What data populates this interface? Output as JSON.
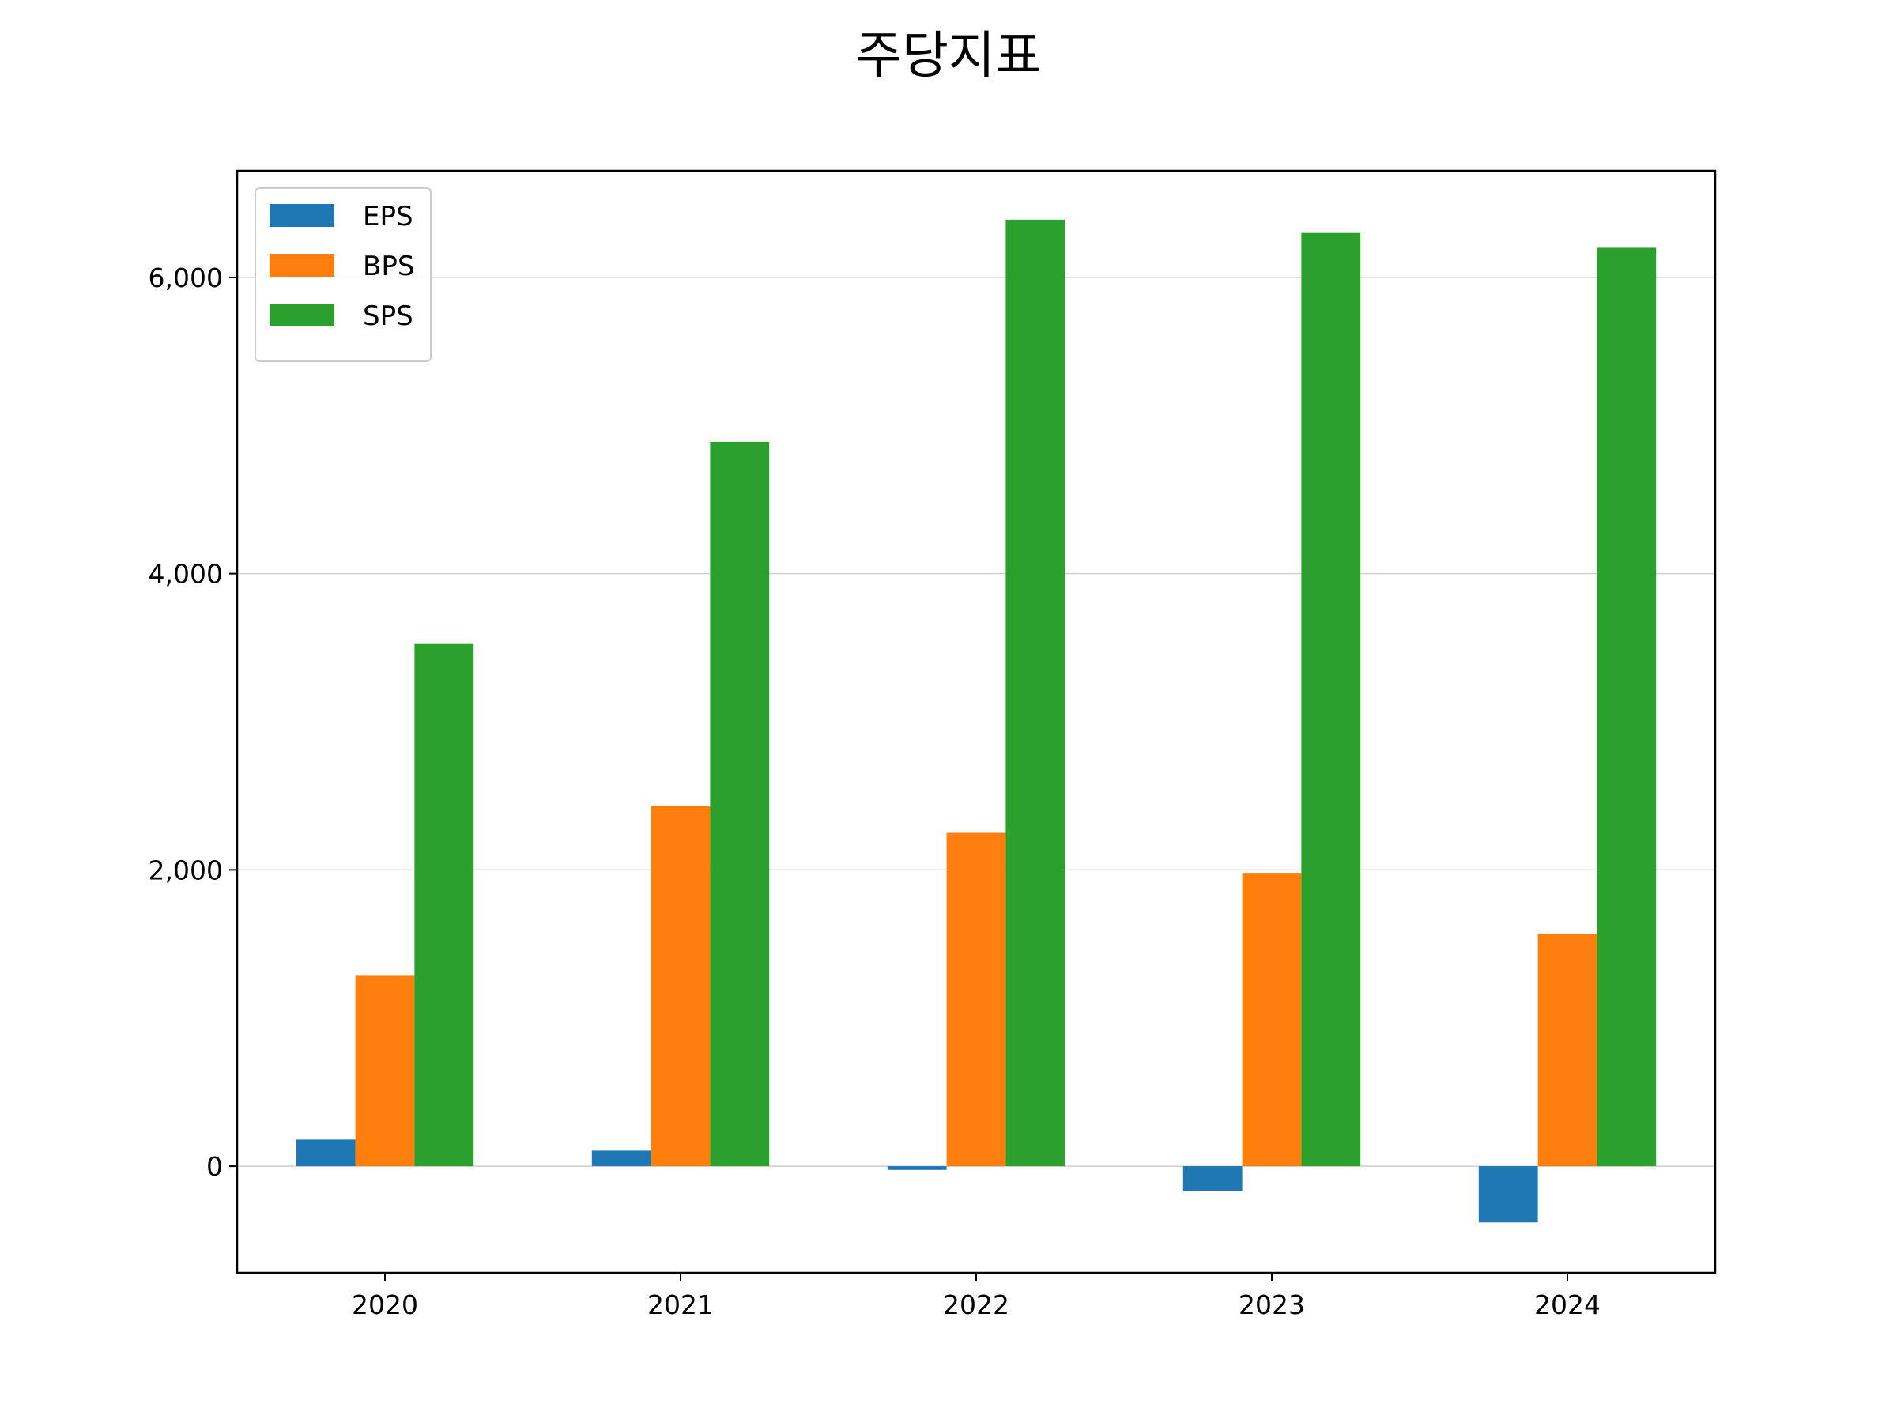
{
  "chart_data": {
    "type": "bar",
    "title": "주당지표",
    "xlabel": "",
    "ylabel": "",
    "categories": [
      "2020",
      "2021",
      "2022",
      "2023",
      "2024"
    ],
    "series": [
      {
        "name": "EPS",
        "color": "#1f77b4",
        "values": [
          180,
          105,
          -25,
          -170,
          -380
        ]
      },
      {
        "name": "BPS",
        "color": "#ff7f0e",
        "values": [
          1290,
          2430,
          2250,
          1980,
          1570
        ]
      },
      {
        "name": "SPS",
        "color": "#2ca02c",
        "values": [
          3530,
          4890,
          6390,
          6300,
          6200
        ]
      }
    ],
    "ylim": [
      -720,
      6720
    ],
    "yticks": [
      0,
      2000,
      4000,
      6000
    ],
    "ytick_labels": [
      "0",
      "2,000",
      "4,000",
      "6,000"
    ],
    "grid": "horizontal",
    "legend_position": "upper-left"
  }
}
